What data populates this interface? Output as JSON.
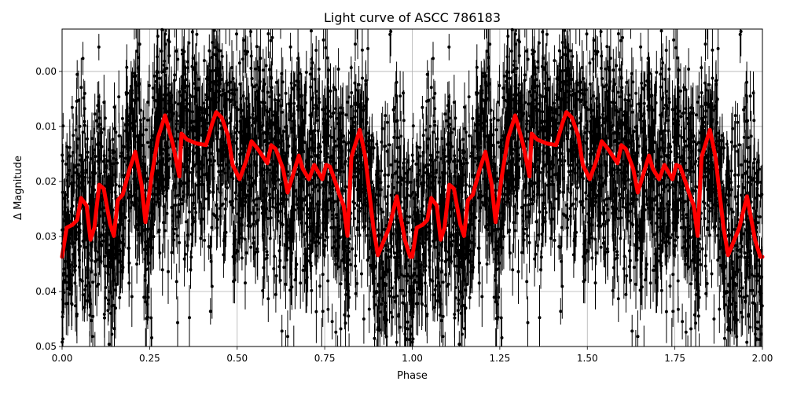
{
  "chart_data": {
    "type": "scatter",
    "title": "Light curve of ASCC 786183",
    "xlabel": "Phase",
    "ylabel": "Δ Magnitude",
    "xlim": [
      0.0,
      2.0
    ],
    "ylim": [
      0.05,
      -0.0077
    ],
    "y_inverted": true,
    "grid": true,
    "xticks": [
      "0.00",
      "0.25",
      "0.50",
      "0.75",
      "1.00",
      "1.25",
      "1.50",
      "1.75",
      "2.00"
    ],
    "yticks": [
      "0.00",
      "0.01",
      "0.02",
      "0.03",
      "0.04",
      "0.05"
    ],
    "series": [
      {
        "name": "observations",
        "style": "black points with error bars",
        "color": "#000000",
        "description": "dense scatter of measurements spanning roughly -0.008 to 0.05 in Δ magnitude across all phases"
      },
      {
        "name": "binned model",
        "style": "thick line",
        "color": "#ff0000",
        "x": [
          0.0,
          0.013,
          0.029,
          0.043,
          0.054,
          0.07,
          0.081,
          0.092,
          0.106,
          0.119,
          0.137,
          0.148,
          0.159,
          0.173,
          0.193,
          0.209,
          0.227,
          0.238,
          0.256,
          0.274,
          0.294,
          0.317,
          0.335,
          0.341,
          0.357,
          0.384,
          0.411,
          0.429,
          0.44,
          0.456,
          0.474,
          0.487,
          0.507,
          0.527,
          0.541,
          0.559,
          0.586,
          0.597,
          0.61,
          0.631,
          0.644,
          0.658,
          0.676,
          0.687,
          0.705,
          0.72,
          0.743,
          0.754,
          0.765,
          0.783,
          0.792,
          0.804,
          0.815,
          0.826,
          0.85,
          0.866,
          0.889,
          0.902,
          0.934,
          0.956,
          0.979,
          0.994,
          1.0
        ],
        "y": [
          0.0337,
          0.0284,
          0.0279,
          0.027,
          0.023,
          0.0244,
          0.0306,
          0.0284,
          0.0206,
          0.0213,
          0.0277,
          0.0299,
          0.0234,
          0.0224,
          0.0177,
          0.0146,
          0.0206,
          0.0274,
          0.019,
          0.012,
          0.008,
          0.0134,
          0.0191,
          0.0113,
          0.0124,
          0.0131,
          0.0134,
          0.0094,
          0.0074,
          0.0084,
          0.0117,
          0.017,
          0.0196,
          0.016,
          0.0127,
          0.0141,
          0.0167,
          0.0134,
          0.0141,
          0.0177,
          0.022,
          0.0191,
          0.0153,
          0.0177,
          0.0196,
          0.017,
          0.0196,
          0.017,
          0.0173,
          0.0206,
          0.0224,
          0.0244,
          0.0299,
          0.0156,
          0.0106,
          0.0156,
          0.0284,
          0.0334,
          0.0284,
          0.0227,
          0.0306,
          0.0337,
          0.0337
        ]
      }
    ],
    "notes": "Data is phase-folded and plotted twice (phase 0-2); the red model curve repeats with period 1.0 in phase."
  }
}
